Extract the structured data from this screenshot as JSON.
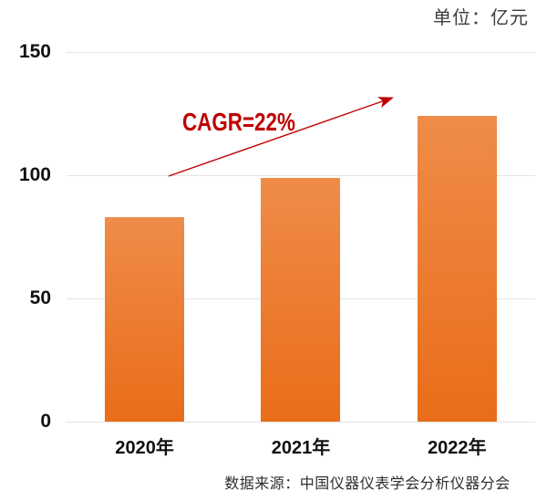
{
  "header": {
    "unit_label": "单位：亿元"
  },
  "annotation": {
    "cagr_label": "CAGR=22%"
  },
  "footer": {
    "source": "数据来源：中国仪器仪表学会分析仪器分会"
  },
  "colors": {
    "bar_gradient_top": "#EF8C49",
    "bar_gradient_bottom": "#E96D19",
    "gridline": "#E4E4E4",
    "axis_text": "#111111",
    "unit_text": "#3C3C3C",
    "source_text": "#2E2E2E",
    "annotation_red": "#C00000"
  },
  "chart_data": {
    "type": "bar",
    "title": "",
    "unit": "亿元",
    "categories": [
      "2020年",
      "2021年",
      "2022年"
    ],
    "values": [
      83,
      99,
      124
    ],
    "yticks": [
      0,
      50,
      100,
      150
    ],
    "ylim": [
      0,
      150
    ],
    "grid": true,
    "legend": "none",
    "annotations": [
      {
        "type": "arrow-with-text",
        "text": "CAGR=22%",
        "from_category": "2020年",
        "from_value": 100,
        "to_category": "2022年",
        "to_value": 132
      }
    ],
    "source": "数据来源：中国仪器仪表学会分析仪器分会"
  }
}
